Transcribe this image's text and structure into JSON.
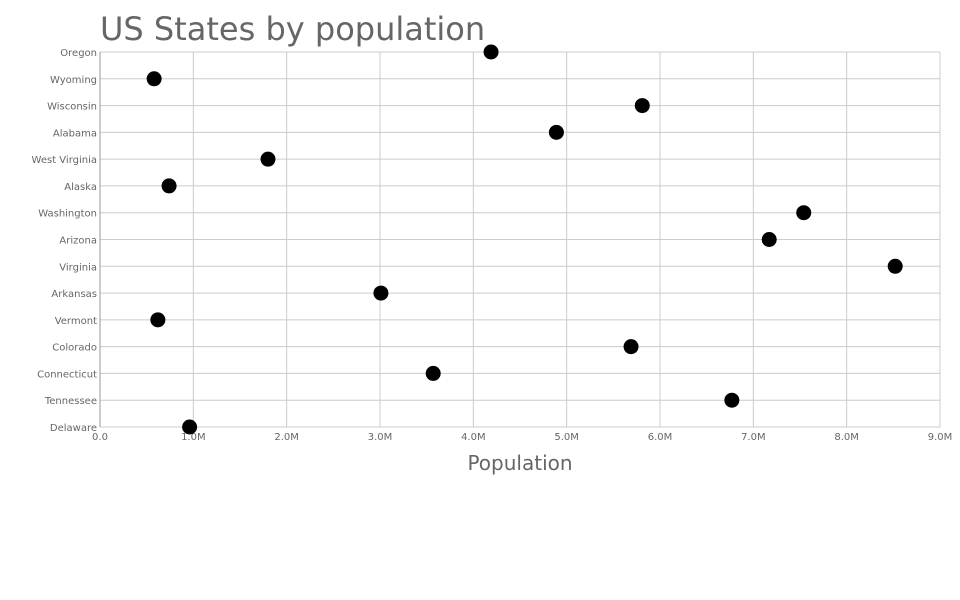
{
  "chart_data": {
    "type": "scatter",
    "title": "US States by population",
    "xlabel": "Population",
    "ylabel": "",
    "xlim": [
      0,
      9000000
    ],
    "x_ticks": [
      0,
      1000000,
      2000000,
      3000000,
      4000000,
      5000000,
      6000000,
      7000000,
      8000000,
      9000000
    ],
    "x_tick_labels": [
      "0.0",
      "1.0M",
      "2.0M",
      "3.0M",
      "4.0M",
      "5.0M",
      "6.0M",
      "7.0M",
      "8.0M",
      "9.0M"
    ],
    "grid": true,
    "legend": "none",
    "categories": [
      "Oregon",
      "Wyoming",
      "Wisconsin",
      "Alabama",
      "West Virginia",
      "Alaska",
      "Washington",
      "Arizona",
      "Virginia",
      "Arkansas",
      "Vermont",
      "Colorado",
      "Connecticut",
      "Tennessee",
      "Delaware"
    ],
    "values": [
      4190000,
      580000,
      5810000,
      4890000,
      1800000,
      740000,
      7540000,
      7170000,
      8520000,
      3010000,
      620000,
      5690000,
      3570000,
      6770000,
      960000
    ],
    "marker_color": "#000000"
  }
}
